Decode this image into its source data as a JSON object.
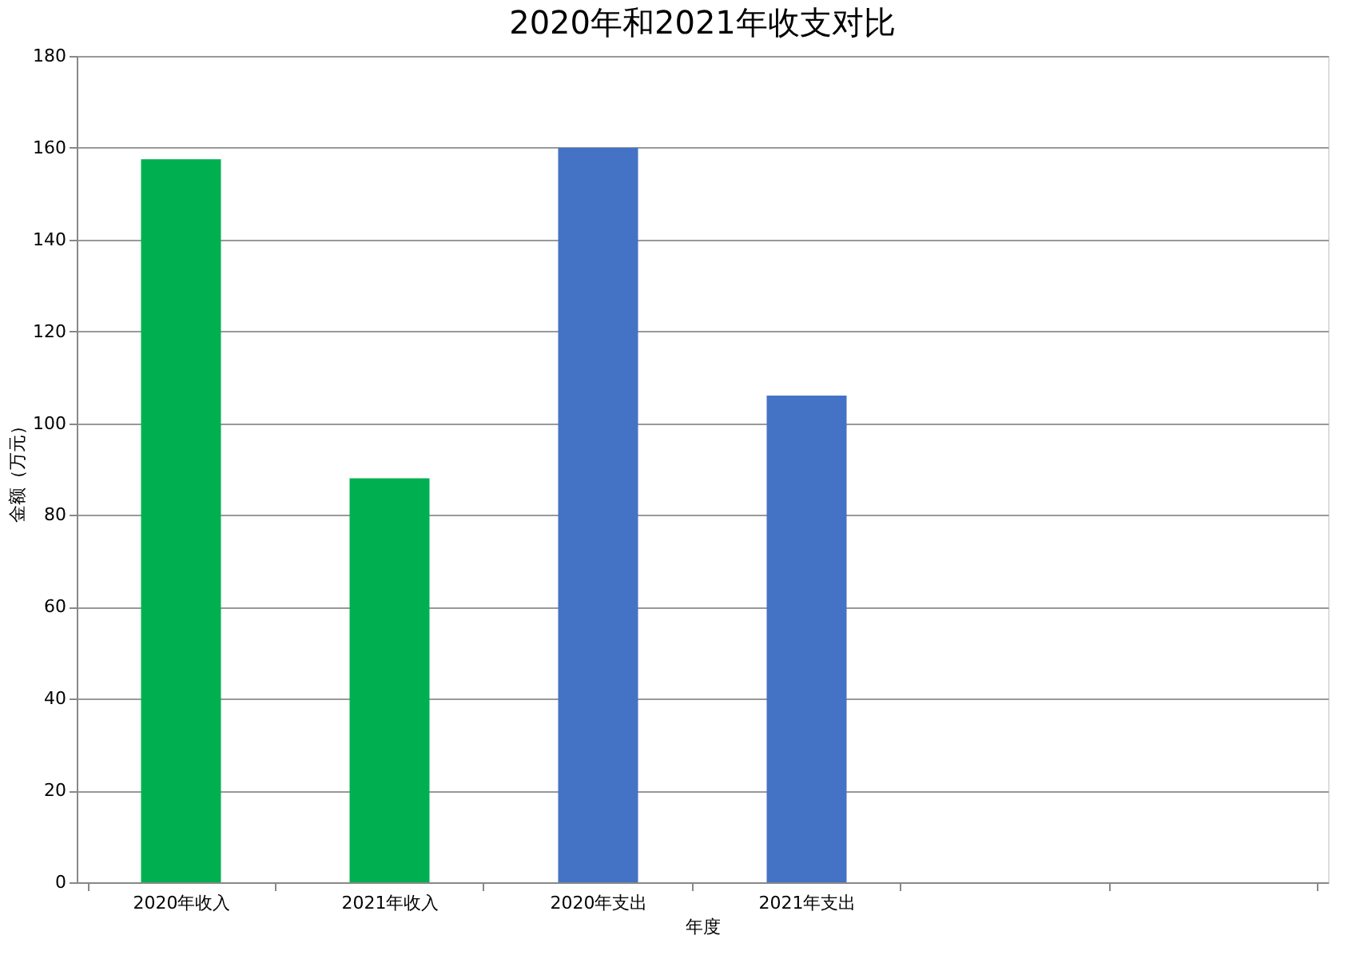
{
  "chart_data": {
    "type": "bar",
    "title": "2020年和2021年收支对比",
    "xlabel": "年度",
    "ylabel": "金额（万元）",
    "categories": [
      "2020年收入",
      "2021年收入",
      "2020年支出",
      "2021年支出",
      null,
      null
    ],
    "values": [
      157.5,
      88,
      160,
      106,
      null,
      null
    ],
    "colors": [
      "#00b050",
      "#00b050",
      "#4472c4",
      "#4472c4",
      "#4472c4",
      "#4472c4"
    ],
    "ylim": [
      0,
      180
    ],
    "yticks": [
      0,
      20,
      40,
      60,
      80,
      100,
      120,
      140,
      160,
      180
    ],
    "grid": "y"
  }
}
